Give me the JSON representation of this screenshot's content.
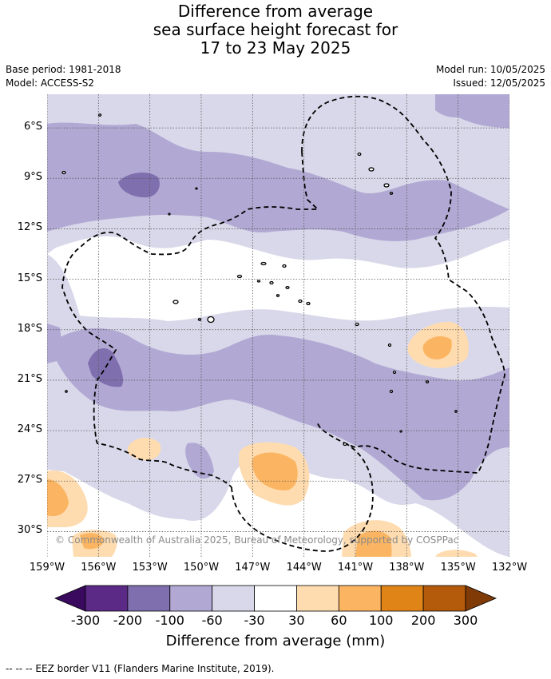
{
  "title": {
    "line1": "Difference from average",
    "line2": "sea surface height forecast for",
    "line3": "17 to 23 May 2025"
  },
  "meta": {
    "base_period": "Base period: 1981-2018",
    "model": "Model: ACCESS-S2",
    "model_run": "Model run: 10/05/2025",
    "issued": "Issued: 12/05/2025"
  },
  "map": {
    "lat_labels": [
      "6°S",
      "9°S",
      "12°S",
      "15°S",
      "18°S",
      "21°S",
      "24°S",
      "27°S",
      "30°S"
    ],
    "lon_labels": [
      "159°W",
      "156°W",
      "153°W",
      "150°W",
      "147°W",
      "144°W",
      "141°W",
      "138°W",
      "135°W",
      "132°W"
    ],
    "extent": {
      "lon_min": -159,
      "lon_max": -132,
      "lat_min": -31.5,
      "lat_max": -4
    },
    "copyright": "© Commonwealth of Australia 2025, Bureau of Meteorology, supported by COSPPac"
  },
  "colorbar": {
    "ticks": [
      "-300",
      "-200",
      "-100",
      "-60",
      "-30",
      "30",
      "60",
      "100",
      "200",
      "300"
    ],
    "colors": [
      "#5b2a86",
      "#7f6fae",
      "#b1a9d3",
      "#d8d8ea",
      "#ffffff",
      "#fedcb0",
      "#fbb562",
      "#e08417",
      "#b45a0b"
    ],
    "extend_low": "#3a0a5e",
    "extend_high": "#7f3a05",
    "title": "Difference from average (mm)"
  },
  "legend": {
    "eez": "--  --  -- EEZ border V11 (Flanders Marine Institute, 2019)."
  }
}
